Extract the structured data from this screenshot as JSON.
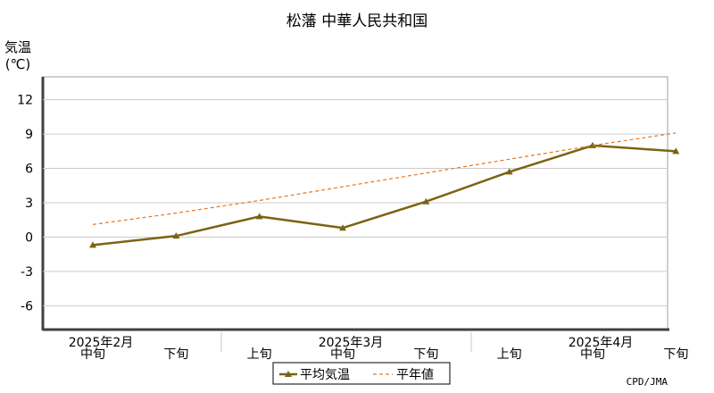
{
  "chart_data": {
    "type": "line",
    "title": "松藩 中華人民共和国",
    "ylabel_line1": "気温",
    "ylabel_line2": "(℃)",
    "ylim": [
      -8,
      14
    ],
    "yticks": [
      12,
      9,
      6,
      3,
      0,
      -3,
      -6
    ],
    "x": [
      "中旬",
      "下旬",
      "上旬",
      "中旬",
      "下旬",
      "上旬",
      "中旬",
      "下旬"
    ],
    "month_labels": [
      {
        "label": "2025年2月",
        "index": 0
      },
      {
        "label": "2025年3月",
        "index": 3
      },
      {
        "label": "2025年4月",
        "index": 6
      }
    ],
    "series": [
      {
        "name": "平均気温",
        "values": [
          -0.7,
          0.1,
          1.8,
          0.8,
          3.1,
          5.7,
          8.0,
          7.5
        ],
        "color": "#7a6412",
        "style": "solid"
      },
      {
        "name": "平年値",
        "values": [
          1.1,
          2.1,
          3.2,
          4.4,
          5.6,
          6.8,
          8.0,
          9.1
        ],
        "color": "#e8761e",
        "style": "dashed"
      }
    ],
    "grid": true,
    "legend": "bottom-center",
    "credit": "CPD/JMA"
  }
}
